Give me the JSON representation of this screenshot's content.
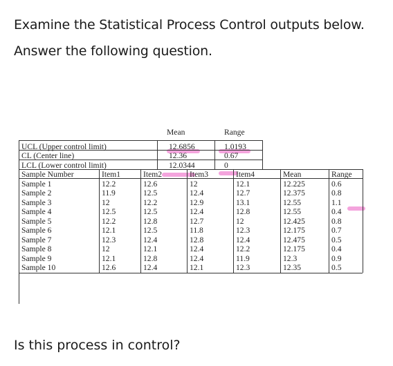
{
  "prompt": {
    "line1": "Examine the Statistical Process Control outputs below.",
    "line2": "Answer the following question."
  },
  "control_limits": {
    "mean_header": "Mean",
    "range_header": "Range",
    "rows": [
      {
        "label": "UCL (Upper control limit)",
        "mean": "12.6856",
        "range": "1.0193"
      },
      {
        "label": "CL (Center line)",
        "mean": "12.36",
        "range": "0.67"
      },
      {
        "label": "LCL (Lower control limit)",
        "mean": "12.0344",
        "range": "0"
      }
    ]
  },
  "sample_table": {
    "headers": [
      "Sample Number",
      "Item1",
      "Item2",
      "Item3",
      "Item4",
      "Mean",
      "Range"
    ],
    "rows": [
      [
        "Sample 1",
        "12.2",
        "12.6",
        "12",
        "12.1",
        "12.225",
        "0.6"
      ],
      [
        "Sample 2",
        "11.9",
        "12.5",
        "12.4",
        "12.7",
        "12.375",
        "0.8"
      ],
      [
        "Sample 3",
        "12",
        "12.2",
        "12.9",
        "13.1",
        "12.55",
        "1.1"
      ],
      [
        "Sample 4",
        "12.5",
        "12.5",
        "12.4",
        "12.8",
        "12.55",
        "0.4"
      ],
      [
        "Sample 5",
        "12.2",
        "12.8",
        "12.7",
        "12",
        "12.425",
        "0.8"
      ],
      [
        "Sample 6",
        "12.1",
        "12.5",
        "11.8",
        "12.3",
        "12.175",
        "0.7"
      ],
      [
        "Sample 7",
        "12.3",
        "12.4",
        "12.8",
        "12.4",
        "12.475",
        "0.5"
      ],
      [
        "Sample 8",
        "12",
        "12.1",
        "12.4",
        "12.2",
        "12.175",
        "0.4"
      ],
      [
        "Sample 9",
        "12.1",
        "12.8",
        "12.4",
        "11.9",
        "12.3",
        "0.9"
      ],
      [
        "Sample 10",
        "12.6",
        "12.4",
        "12.1",
        "12.3",
        "12.35",
        "0.5"
      ]
    ]
  },
  "question": "Is this process in control?",
  "highlight_color": "#f39ad9"
}
